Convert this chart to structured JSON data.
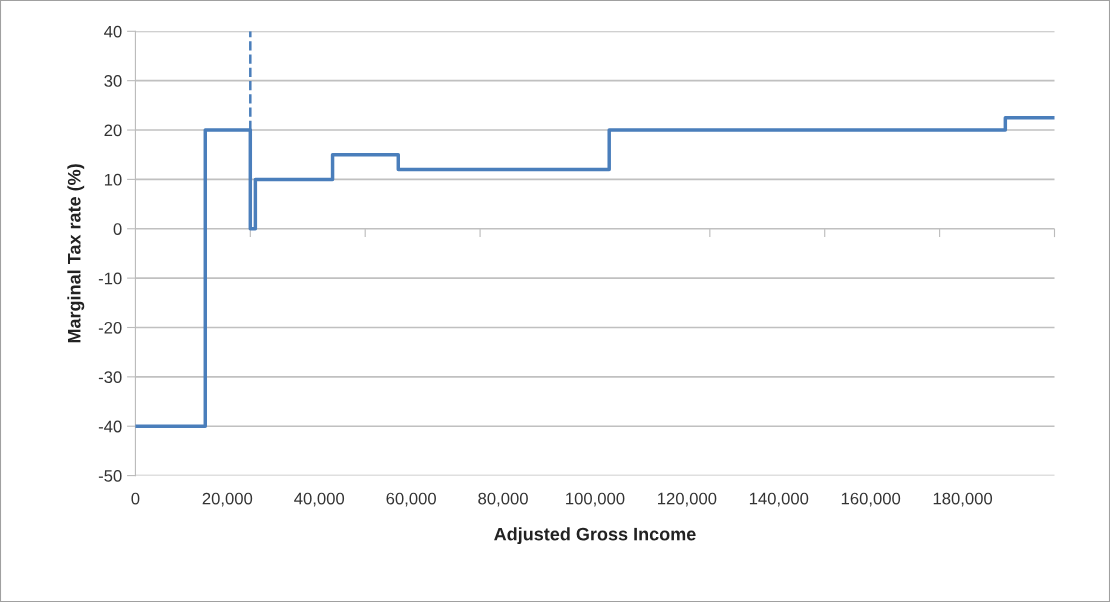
{
  "chart_data": {
    "type": "step",
    "xlabel": "Adjusted Gross Income",
    "ylabel": "Marginal Tax rate (%)",
    "series": [
      {
        "color": "#4a7ebb",
        "line_style": "solid",
        "x": [
          0,
          15200,
          25000,
          26100,
          42900,
          57200,
          103100,
          189300,
          200000
        ],
        "values": [
          -40,
          20,
          0,
          10,
          15,
          12,
          20,
          22.5,
          22.5
        ]
      },
      {
        "type": "line",
        "color": "#4a7ebb",
        "line_style": "dashed",
        "x": [
          25000,
          25000
        ],
        "values": [
          20,
          40
        ]
      }
    ],
    "xlim": [
      0,
      200000
    ],
    "ylim": [
      -50,
      40
    ],
    "xticks": [
      0,
      {
        "value": 20000,
        "label": "20,000"
      },
      {
        "value": 25000,
        "label": null
      },
      {
        "value": 40000,
        "label": "40,000"
      },
      {
        "value": 50000,
        "label": null
      },
      {
        "value": 60000,
        "label": "60,000"
      },
      {
        "value": 75000,
        "label": null
      },
      {
        "value": 80000,
        "label": "80,000"
      },
      {
        "value": 100000,
        "label": "100,000"
      },
      {
        "value": 120000,
        "label": "120,000"
      },
      {
        "value": 125000,
        "label": null
      },
      {
        "value": 140000,
        "label": "140,000"
      },
      {
        "value": 150000,
        "label": null
      },
      {
        "value": 160000,
        "label": "160,000"
      },
      {
        "value": 175000,
        "label": null
      },
      {
        "value": 180000,
        "label": "180,000"
      },
      {
        "value": 200000,
        "label": null
      }
    ],
    "yticks": [
      -50,
      -40,
      -30,
      -20,
      -10,
      0,
      10,
      20,
      30,
      40
    ],
    "grid": "y",
    "legend": false
  }
}
